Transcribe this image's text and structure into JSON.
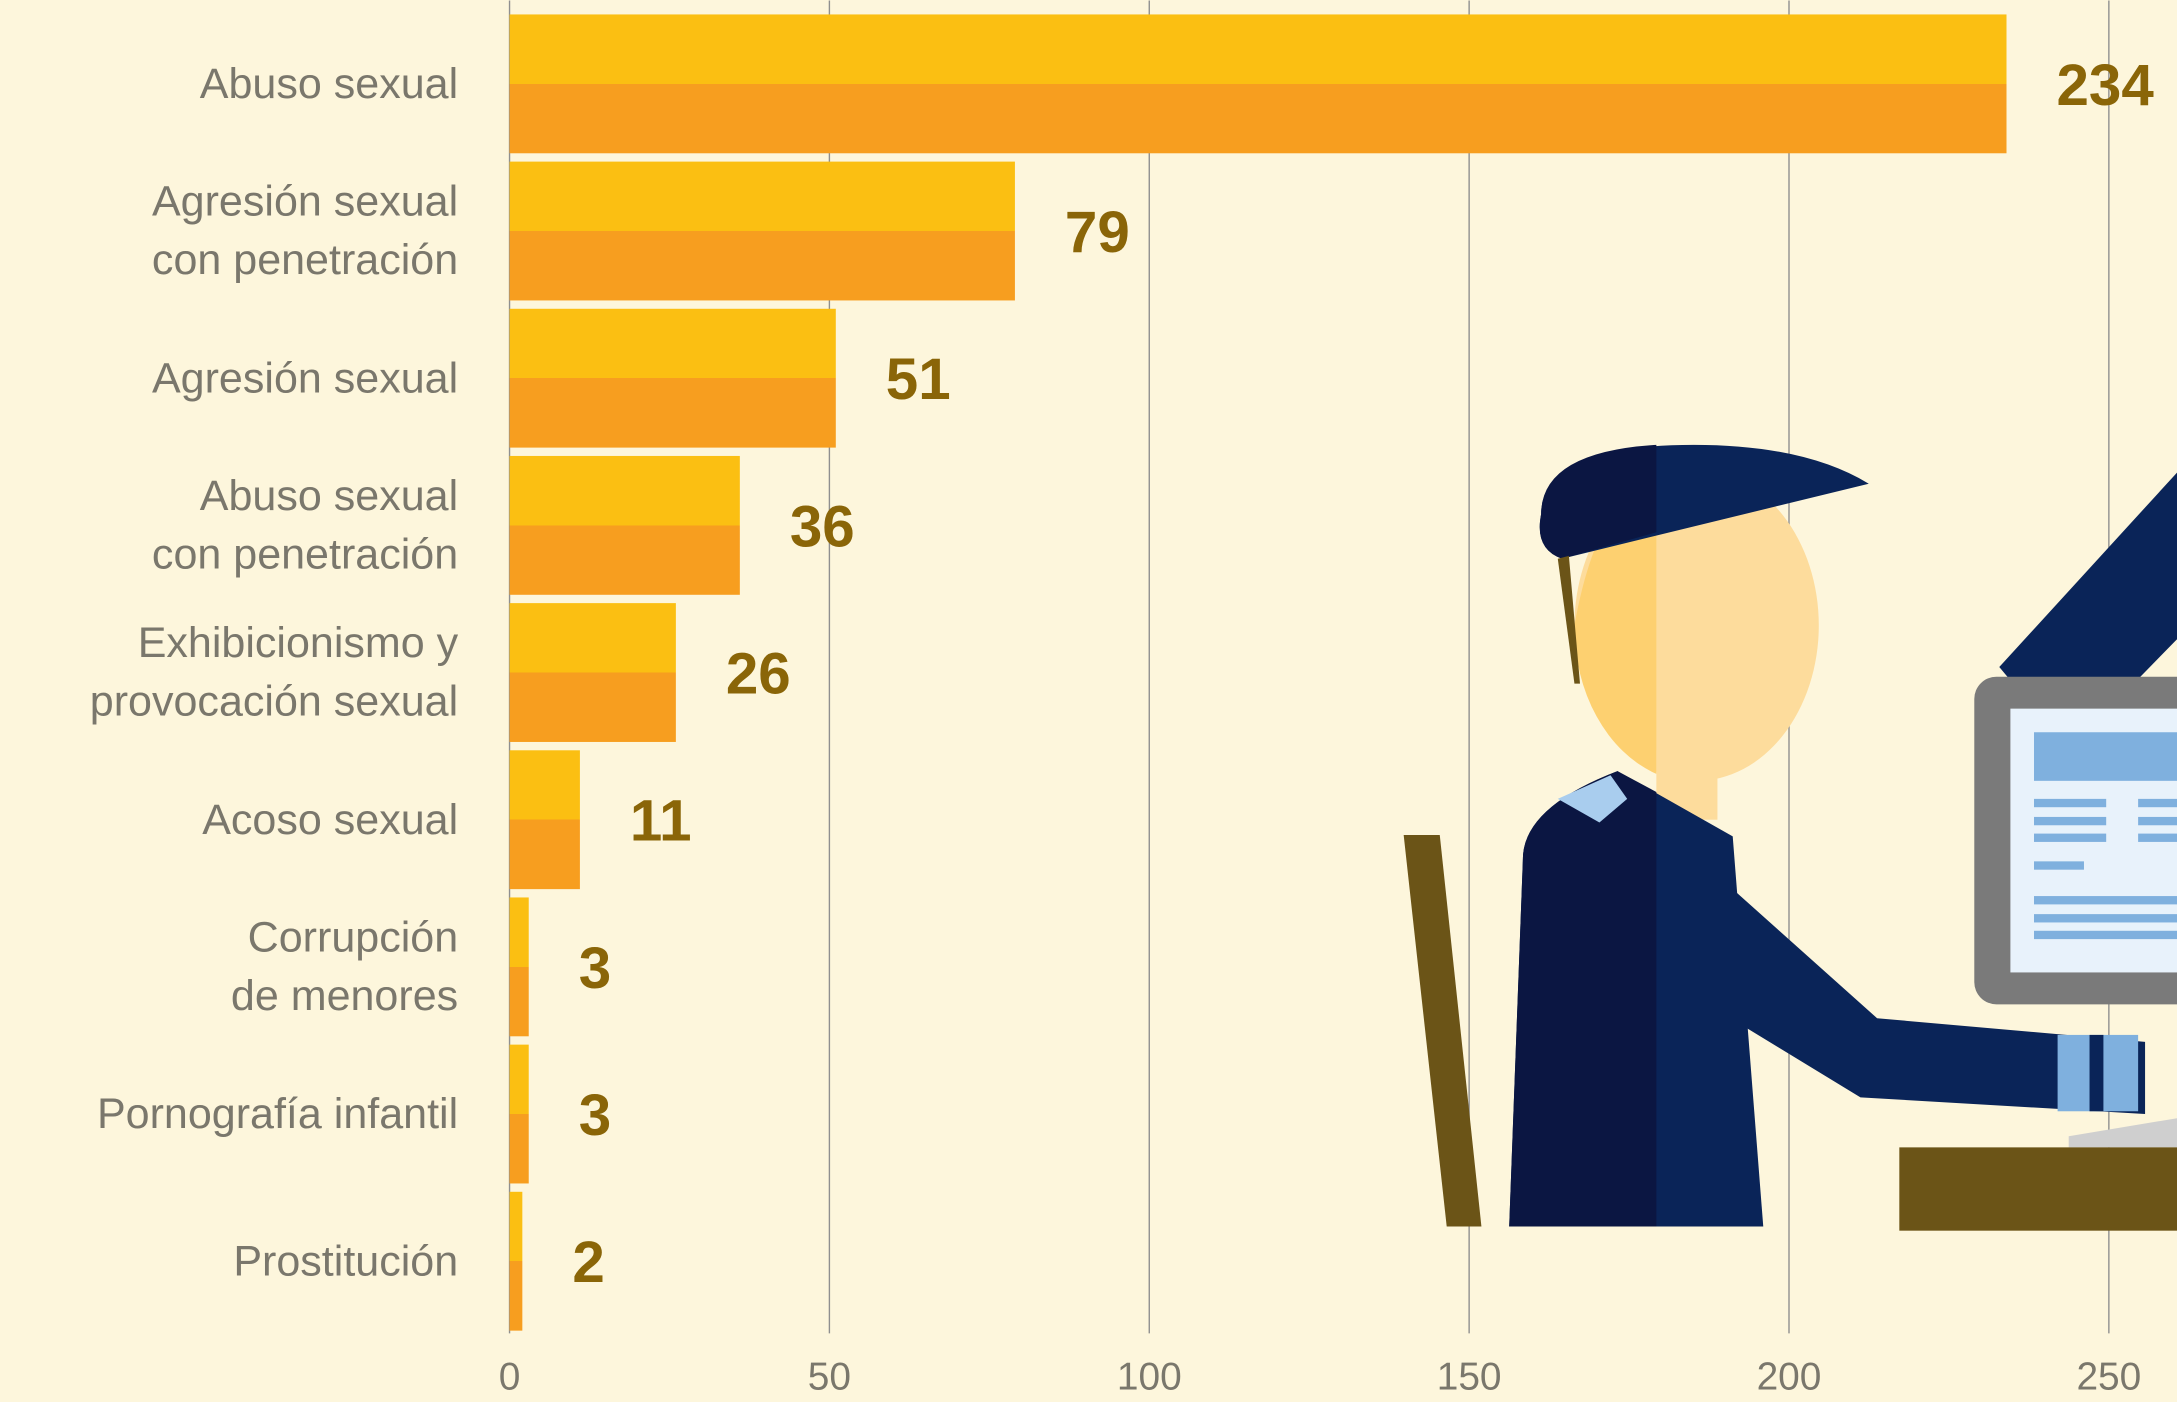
{
  "chart_data": {
    "type": "bar",
    "orientation": "horizontal",
    "categories": [
      "Abuso sexual",
      "Agresión sexual\ncon penetración",
      "Agresión sexual",
      "Abuso sexual\ncon penetración",
      "Exhibicionismo y\nprovocación sexual",
      "Acoso sexual",
      "Corrupción\nde menores",
      "Pornografía infantil",
      "Prostitución"
    ],
    "values": [
      234,
      79,
      51,
      36,
      26,
      11,
      3,
      3,
      2
    ],
    "colors": [
      "#fbbf12",
      "#f79e1f"
    ],
    "xlim": [
      0,
      260
    ],
    "xticks": [
      0,
      50,
      100,
      150,
      200,
      250
    ],
    "grid": true
  }
}
